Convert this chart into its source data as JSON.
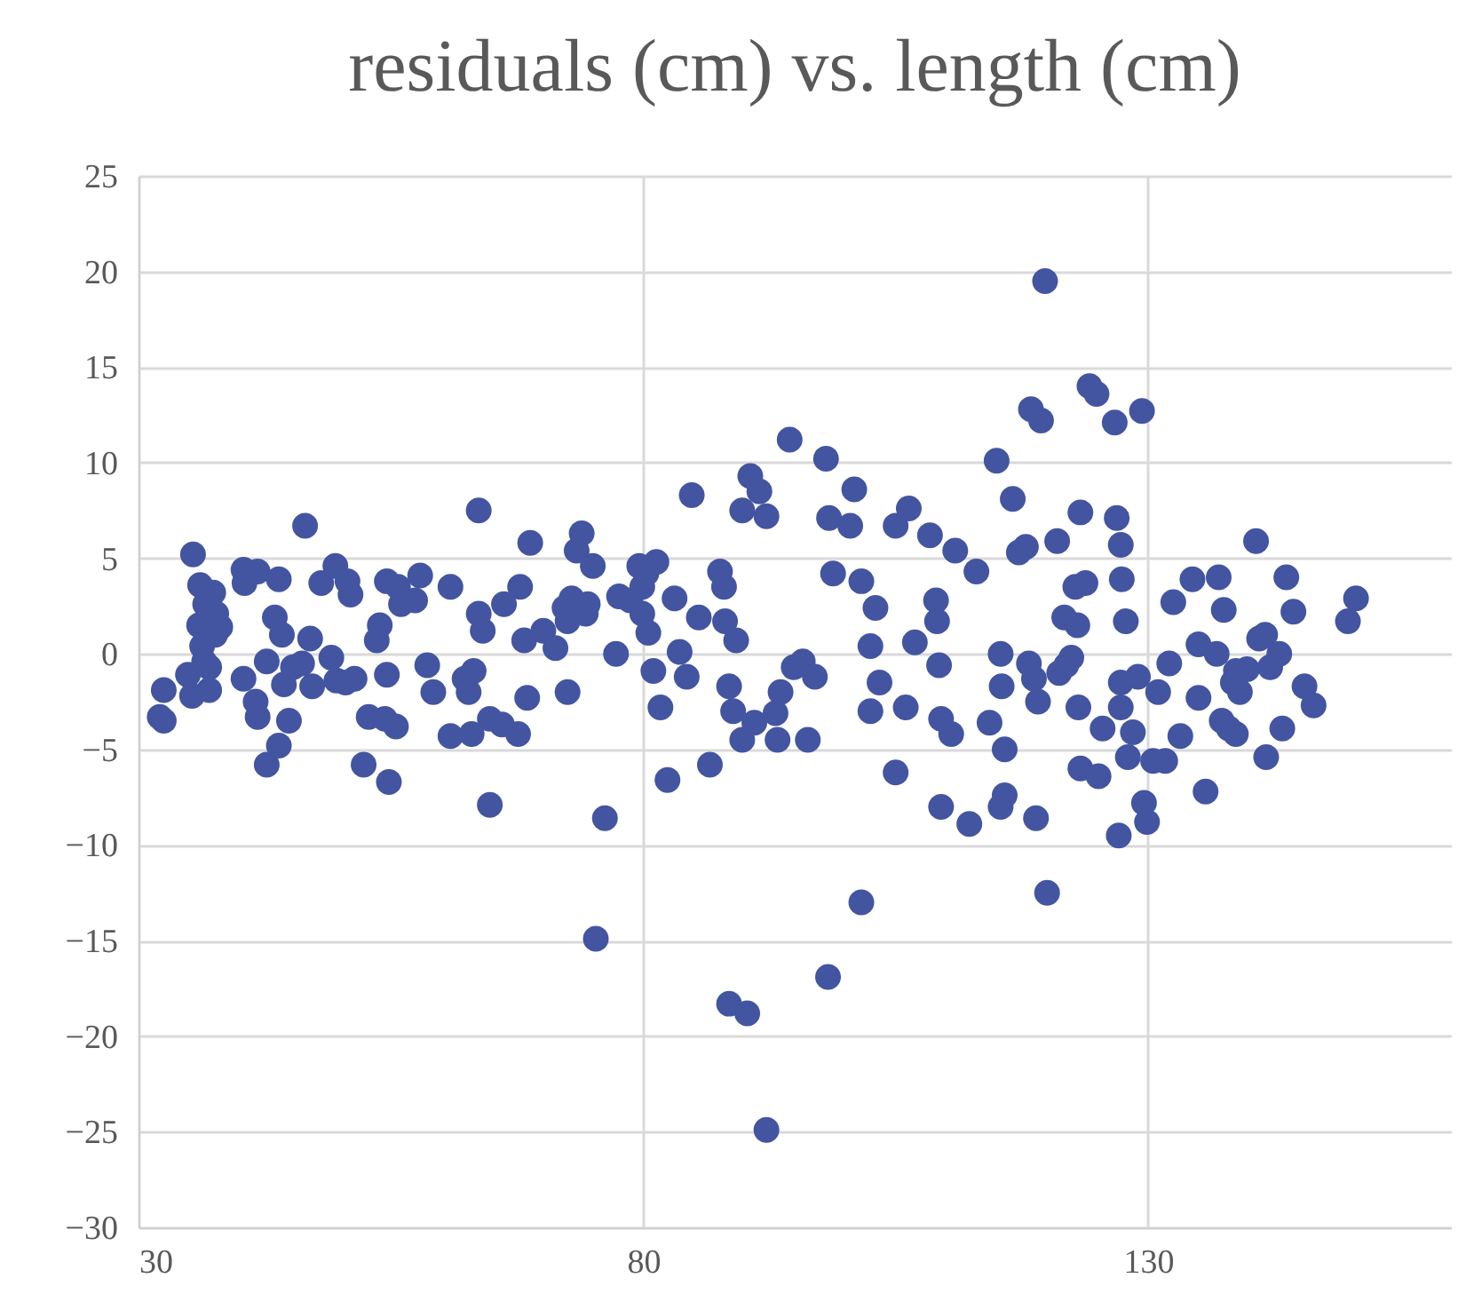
{
  "chart_data": {
    "type": "scatter",
    "title": "residuals (cm) vs. length (cm)",
    "xlim": [
      30,
      160
    ],
    "xticks": [
      30,
      80,
      130
    ],
    "ylim": [
      -30,
      25
    ],
    "yticks": [
      -30,
      -25,
      -20,
      -15,
      -10,
      -5,
      0,
      5,
      10,
      15,
      20,
      25
    ],
    "grid": true,
    "marker": "circle",
    "series": [
      {
        "color": "#4355a0",
        "x": [
          32.5,
          32.1,
          32.5,
          35.4,
          34.9,
          35.3,
          36,
          36.1,
          36.3,
          36.6,
          37,
          37.4,
          37.6,
          37,
          37.7,
          36.5,
          38.1,
          40.4,
          40.4,
          40.5,
          41.8,
          41.6,
          41.8,
          42.7,
          42.7,
          43.5,
          43.9,
          43.9,
          44.2,
          44.4,
          44.9,
          45.3,
          46.2,
          46.5,
          47,
          47.2,
          48.1,
          49.1,
          49.5,
          49.6,
          50.5,
          50.7,
          51,
          51.4,
          52.3,
          52.8,
          53.6,
          53.9,
          54.4,
          54.6,
          54.6,
          54.8,
          55.5,
          55.7,
          56,
          57.4,
          57.9,
          58.6,
          59.2,
          60.9,
          60.9,
          62.3,
          62.7,
          63,
          63.2,
          63.7,
          63.7,
          64.1,
          64.8,
          64.8,
          66,
          66.2,
          67.6,
          67.8,
          68.2,
          68.5,
          68.8,
          70.1,
          71.3,
          72.2,
          72.5,
          72.5,
          72.9,
          73.4,
          73.9,
          74.3,
          74.5,
          75,
          75.3,
          76.2,
          77.3,
          77.6,
          78.7,
          79.6,
          79.9,
          79.9,
          80.3,
          80.5,
          81,
          81.3,
          81.7,
          82.4,
          83.1,
          83.6,
          84.3,
          84.8,
          85.5,
          86.6,
          87.6,
          88,
          88.1,
          88.5,
          88.5,
          88.9,
          89.2,
          89.8,
          89.8,
          90.3,
          90.6,
          91,
          91.5,
          92.2,
          92.2,
          93.1,
          93.3,
          93.6,
          94.5,
          94.9,
          95.8,
          96.3,
          97,
          98.1,
          98.3,
          98.4,
          98.8,
          100.5,
          100.9,
          101.6,
          101.6,
          102.5,
          102.5,
          103,
          103.4,
          105,
          105,
          106,
          106.3,
          106.9,
          108.4,
          109,
          109.1,
          109.3,
          109.5,
          109.5,
          110.5,
          110.9,
          112.3,
          113,
          114.3,
          115,
          115.4,
          115.5,
          115.8,
          115.4,
          115.8,
          116.6,
          117.2,
          117.9,
          118.2,
          118.4,
          118.7,
          118.9,
          119.1,
          119.4,
          119.8,
          120,
          121,
          121.2,
          121.7,
          121.9,
          122.4,
          122.8,
          123,
          123.1,
          123.3,
          123.3,
          123.8,
          124.2,
          124.9,
          125.1,
          125.5,
          126.7,
          126.9,
          127.3,
          127.4,
          127.3,
          127.3,
          127.1,
          127.8,
          128,
          128.5,
          129,
          129.4,
          129.6,
          129.9,
          130.5,
          131,
          131.7,
          132.1,
          132.5,
          133.2,
          134.4,
          135,
          135,
          135.7,
          136.8,
          137,
          137.3,
          137.5,
          138,
          138.4,
          138.7,
          138.7,
          139.1,
          139.8,
          140.7,
          141,
          141.6,
          141.7,
          142.1,
          143,
          143.3,
          143.7,
          144.4,
          145.5,
          146.4,
          149.8,
          150.6
        ],
        "values": [
          -1.9,
          -3.3,
          -3.5,
          5.2,
          -1.1,
          -2.2,
          1.5,
          3.6,
          0.4,
          2.6,
          -0.7,
          3.2,
          1,
          -1.9,
          2.1,
          -0.4,
          1.4,
          -1.3,
          4.4,
          3.7,
          4.3,
          -2.5,
          -3.3,
          -5.8,
          -0.4,
          1.9,
          3.9,
          -4.8,
          1,
          -1.6,
          -3.5,
          -0.7,
          -0.5,
          6.7,
          0.8,
          -1.7,
          3.7,
          -0.2,
          4.6,
          -1.4,
          -1.5,
          3.8,
          3.1,
          -1.3,
          -5.8,
          -3.3,
          0.7,
          1.5,
          -3.4,
          3.8,
          -1.1,
          -6.7,
          -3.8,
          3.5,
          2.6,
          2.8,
          4.1,
          -0.6,
          -2,
          -4.3,
          3.5,
          -1.3,
          -2,
          -4.2,
          -0.9,
          7.5,
          2.1,
          1.2,
          -7.9,
          -3.4,
          -3.7,
          2.6,
          -4.2,
          3.5,
          0.7,
          -2.3,
          5.8,
          1.2,
          0.3,
          2.4,
          -2,
          1.7,
          2.9,
          5.4,
          6.3,
          2.1,
          2.6,
          4.6,
          -14.9,
          -8.6,
          0,
          3,
          2.8,
          4.6,
          2.1,
          3.5,
          4.2,
          1.1,
          -0.9,
          4.8,
          -2.8,
          -6.6,
          2.9,
          0.1,
          -1.2,
          8.3,
          1.9,
          -5.8,
          4.3,
          3.5,
          1.7,
          -1.7,
          -18.3,
          -3,
          0.7,
          7.5,
          -4.5,
          -18.8,
          9.3,
          -3.6,
          8.5,
          7.2,
          -24.9,
          -3.1,
          -4.5,
          -2,
          11.2,
          -0.7,
          -0.4,
          -4.5,
          -1.2,
          10.2,
          -16.9,
          7.1,
          4.2,
          6.7,
          8.6,
          -13,
          3.8,
          0.4,
          -3,
          2.4,
          -1.5,
          -6.2,
          6.7,
          -2.8,
          7.6,
          0.6,
          6.2,
          2.8,
          1.7,
          -0.6,
          -3.4,
          -8,
          -4.2,
          5.4,
          -8.9,
          4.3,
          -3.6,
          10.1,
          0,
          -1.7,
          -5,
          -8,
          -7.4,
          8.1,
          5.3,
          5.6,
          -0.5,
          12.8,
          -1.3,
          -8.6,
          -2.5,
          12.2,
          19.5,
          -12.5,
          5.9,
          -1,
          1.9,
          -0.6,
          -0.2,
          3.5,
          1.5,
          -2.8,
          7.4,
          -6,
          3.7,
          14,
          13.6,
          -6.4,
          -3.9,
          12.1,
          7.1,
          5.7,
          3.9,
          -2.8,
          -1.5,
          -9.5,
          1.7,
          -5.4,
          -4.1,
          -1.2,
          12.7,
          -7.8,
          -8.8,
          -5.6,
          -2,
          -5.6,
          -0.5,
          2.7,
          -4.3,
          3.9,
          0.5,
          -2.3,
          -7.2,
          0,
          4,
          -3.5,
          2.3,
          -3.9,
          -1.5,
          -0.9,
          -4.2,
          -2,
          -0.8,
          5.9,
          0.8,
          1,
          -5.4,
          -0.7,
          0,
          -3.9,
          4,
          2.2,
          -1.7,
          -2.7,
          1.7,
          2.9
        ]
      }
    ]
  }
}
